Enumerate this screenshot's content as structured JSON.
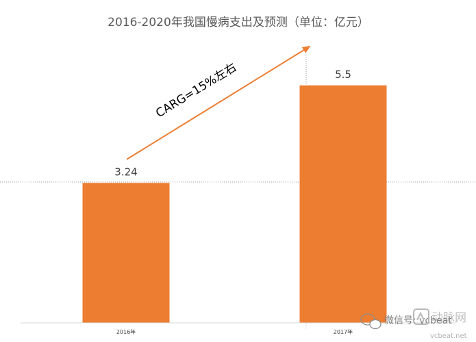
{
  "chart_data": {
    "type": "bar",
    "title": "2016-2020年我国慢病支出及预测（单位：亿元）",
    "categories": [
      "2016年",
      "2017年"
    ],
    "values": [
      3.24,
      5.5
    ],
    "value_labels": [
      "3.24",
      "5.5"
    ],
    "ylim": [
      0,
      6.4
    ],
    "xlabel": "",
    "ylabel": "",
    "grid": "dotted crosshair lines",
    "legend": "none",
    "bar_color": "#ED7D31",
    "annotation": {
      "text": "CARG=15%左右",
      "arrow_color": "#ED7D31"
    }
  },
  "watermark": {
    "wechat_label": "微信号: vcbeat",
    "brand_cn": "动脉网",
    "brand_en": "vcbeat.net"
  }
}
